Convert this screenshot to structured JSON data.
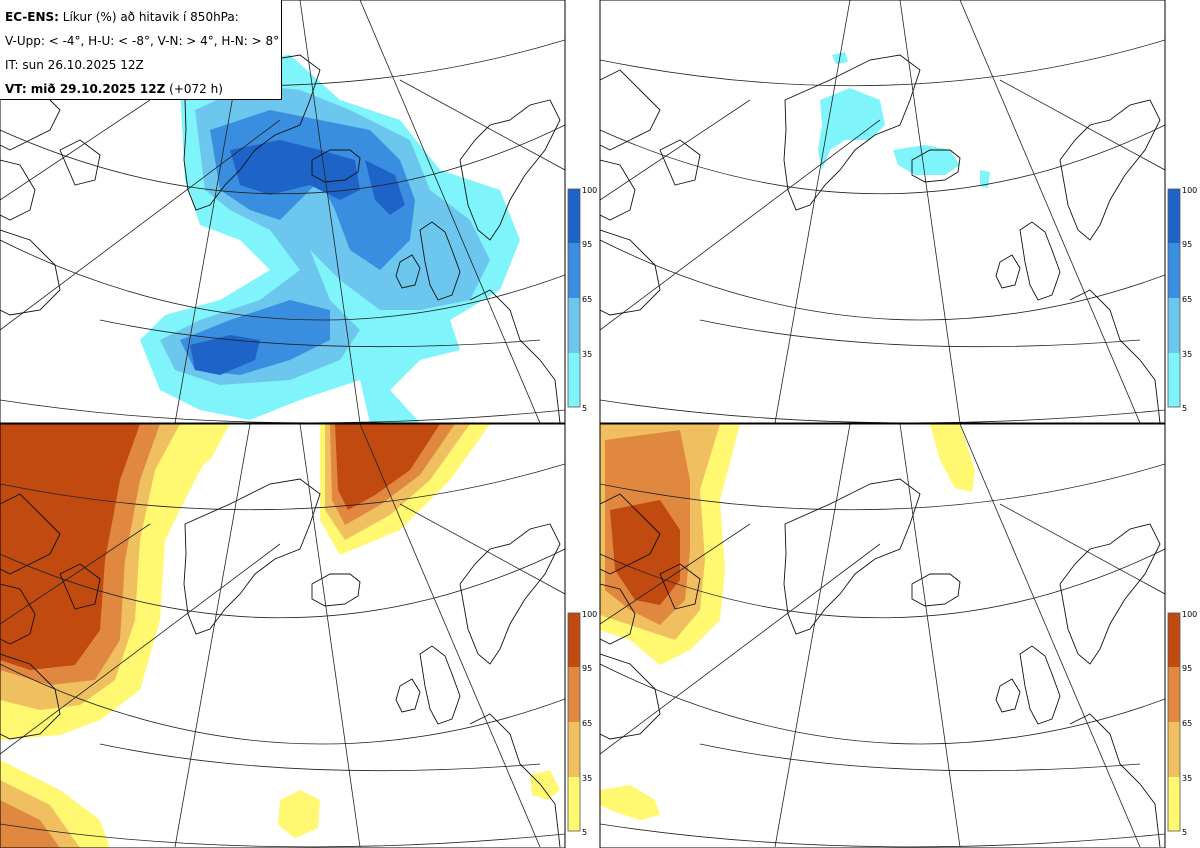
{
  "header": {
    "model": "EC-ENS:",
    "title": "Líkur (%) að hitavik í 850hPa:",
    "thresholds": "V-Upp: < -4°, H-U: < -8°, V-N: > 4°, H-N: > 8°",
    "it": "IT: sun 26.10.2025 12Z",
    "vt_label": "VT: mið 29.10.2025 12Z",
    "lead": "(+072 h)"
  },
  "colorbars": {
    "cold": {
      "ticks": [
        "100",
        "95",
        "65",
        "35",
        "5"
      ],
      "colors": [
        "#1e64c8",
        "#3a8ee0",
        "#6cc6ee",
        "#7ff4fb"
      ]
    },
    "warm": {
      "ticks": [
        "100",
        "95",
        "65",
        "35",
        "5"
      ],
      "colors": [
        "#c04a10",
        "#e08840",
        "#f0c060",
        "#fff870"
      ]
    }
  }
}
